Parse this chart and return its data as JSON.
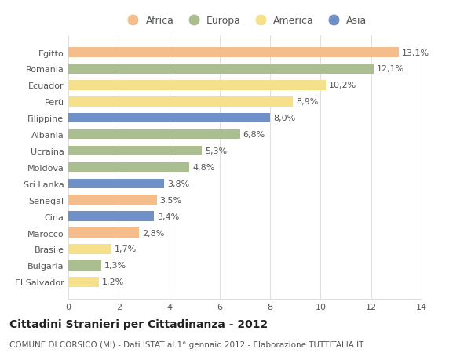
{
  "categories": [
    "Egitto",
    "Romania",
    "Ecuador",
    "Perù",
    "Filippine",
    "Albania",
    "Ucraina",
    "Moldova",
    "Sri Lanka",
    "Senegal",
    "Cina",
    "Marocco",
    "Brasile",
    "Bulgaria",
    "El Salvador"
  ],
  "values": [
    13.1,
    12.1,
    10.2,
    8.9,
    8.0,
    6.8,
    5.3,
    4.8,
    3.8,
    3.5,
    3.4,
    2.8,
    1.7,
    1.3,
    1.2
  ],
  "continents": [
    "Africa",
    "Europa",
    "America",
    "America",
    "Asia",
    "Europa",
    "Europa",
    "Europa",
    "Asia",
    "Africa",
    "Asia",
    "Africa",
    "America",
    "Europa",
    "America"
  ],
  "colors": {
    "Africa": "#F5BC8C",
    "Europa": "#AABE90",
    "America": "#F5E08C",
    "Asia": "#7090C8"
  },
  "legend_order": [
    "Africa",
    "Europa",
    "America",
    "Asia"
  ],
  "title": "Cittadini Stranieri per Cittadinanza - 2012",
  "subtitle": "COMUNE DI CORSICO (MI) - Dati ISTAT al 1° gennaio 2012 - Elaborazione TUTTITALIA.IT",
  "xlim": [
    0,
    14
  ],
  "xticks": [
    0,
    2,
    4,
    6,
    8,
    10,
    12,
    14
  ],
  "background_color": "#ffffff",
  "grid_color": "#e0e0e0",
  "title_fontsize": 10,
  "subtitle_fontsize": 7.5,
  "label_fontsize": 8,
  "tick_fontsize": 8,
  "legend_fontsize": 9
}
